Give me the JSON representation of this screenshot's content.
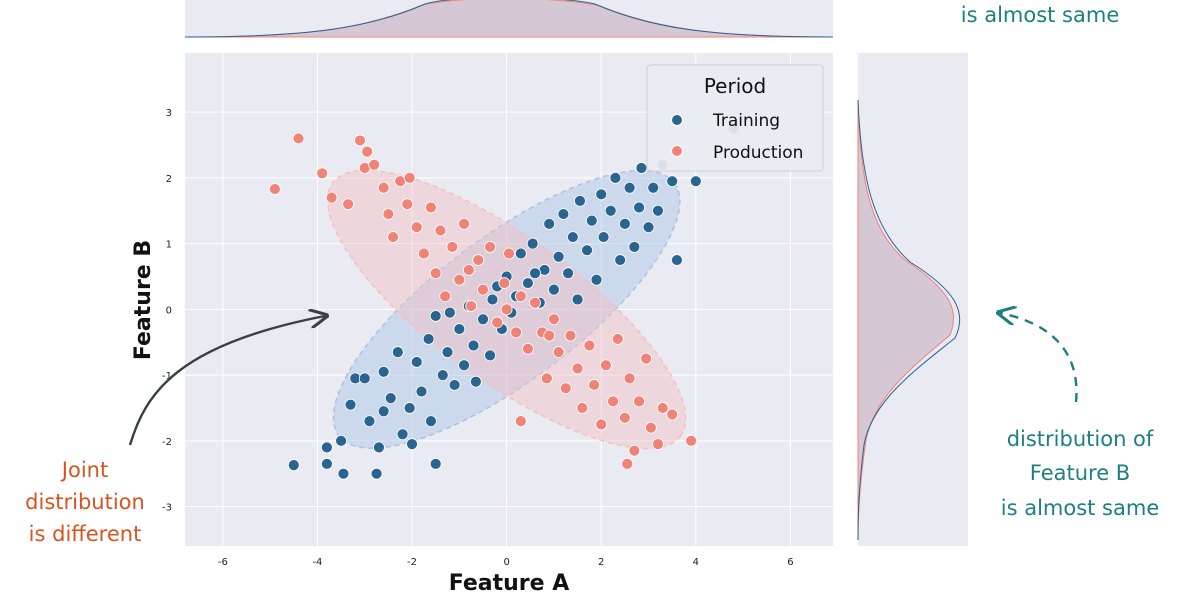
{
  "chart_data": {
    "type": "scatter",
    "xlabel": "Feature A",
    "ylabel": "Feature B",
    "xlim": [
      -6.8,
      6.9
    ],
    "ylim": [
      -3.6,
      3.9
    ],
    "xticks": [
      -6,
      -4,
      -2,
      0,
      2,
      4,
      6
    ],
    "yticks": [
      -3,
      -2,
      -1,
      0,
      1,
      2,
      3
    ],
    "grid": true,
    "legend": {
      "title": "Period",
      "placement": "top-right"
    },
    "series": [
      {
        "name": "Training",
        "color": "#2a6592",
        "correlation": "positive",
        "ellipse_center": [
          0,
          0
        ],
        "values": [
          [
            -4.5,
            -2.37
          ],
          [
            -3.8,
            -2.1
          ],
          [
            -3.8,
            -2.35
          ],
          [
            -3.5,
            -2.0
          ],
          [
            -3.45,
            -2.5
          ],
          [
            -3.3,
            -1.45
          ],
          [
            -3.2,
            -1.05
          ],
          [
            -3.0,
            -1.05
          ],
          [
            -2.75,
            -2.5
          ],
          [
            -2.7,
            -2.1
          ],
          [
            -2.9,
            -1.7
          ],
          [
            -2.6,
            -1.55
          ],
          [
            -2.6,
            -0.95
          ],
          [
            -2.45,
            -1.35
          ],
          [
            -2.3,
            -0.65
          ],
          [
            -2.2,
            -1.9
          ],
          [
            -2.05,
            -1.5
          ],
          [
            -2.0,
            -2.05
          ],
          [
            -1.9,
            -0.8
          ],
          [
            -1.8,
            -1.25
          ],
          [
            -1.65,
            -0.45
          ],
          [
            -1.6,
            -1.7
          ],
          [
            -1.5,
            -2.35
          ],
          [
            -1.5,
            -0.1
          ],
          [
            -1.35,
            -1.0
          ],
          [
            -1.25,
            -0.65
          ],
          [
            -1.1,
            -1.15
          ],
          [
            -1.0,
            -0.3
          ],
          [
            -0.9,
            -0.85
          ],
          [
            -0.8,
            0.05
          ],
          [
            -0.7,
            -0.55
          ],
          [
            -0.65,
            -1.1
          ],
          [
            -0.5,
            -0.15
          ],
          [
            -0.35,
            -0.7
          ],
          [
            -0.2,
            0.35
          ],
          [
            -0.1,
            -0.3
          ],
          [
            0.0,
            0.5
          ],
          [
            0.1,
            -0.05
          ],
          [
            0.2,
            0.2
          ],
          [
            0.3,
            0.85
          ],
          [
            0.45,
            0.4
          ],
          [
            0.55,
            1.0
          ],
          [
            0.7,
            0.1
          ],
          [
            0.8,
            0.6
          ],
          [
            0.9,
            1.3
          ],
          [
            1.0,
            0.3
          ],
          [
            1.1,
            0.8
          ],
          [
            1.2,
            1.45
          ],
          [
            1.3,
            0.55
          ],
          [
            1.4,
            1.1
          ],
          [
            1.5,
            0.15
          ],
          [
            1.55,
            1.65
          ],
          [
            1.7,
            0.9
          ],
          [
            1.8,
            1.35
          ],
          [
            1.9,
            0.45
          ],
          [
            2.0,
            1.75
          ],
          [
            2.05,
            1.1
          ],
          [
            2.2,
            1.5
          ],
          [
            2.3,
            2.0
          ],
          [
            2.4,
            0.75
          ],
          [
            2.5,
            1.3
          ],
          [
            2.6,
            1.85
          ],
          [
            2.7,
            0.95
          ],
          [
            2.8,
            1.55
          ],
          [
            2.85,
            2.15
          ],
          [
            3.0,
            1.25
          ],
          [
            3.1,
            1.85
          ],
          [
            3.2,
            1.5
          ],
          [
            3.3,
            2.2
          ],
          [
            3.5,
            1.95
          ],
          [
            3.6,
            0.75
          ],
          [
            4.0,
            1.95
          ],
          [
            4.8,
            2.75
          ],
          [
            -1.2,
            -0.05
          ],
          [
            -0.3,
            0.15
          ],
          [
            0.6,
            0.55
          ]
        ]
      },
      {
        "name": "Production",
        "color": "#f08377",
        "correlation": "negative",
        "ellipse_center": [
          0,
          0
        ],
        "values": [
          [
            -4.9,
            1.83
          ],
          [
            -4.4,
            2.6
          ],
          [
            -3.9,
            2.07
          ],
          [
            -3.7,
            1.7
          ],
          [
            -3.35,
            1.6
          ],
          [
            -3.1,
            2.57
          ],
          [
            -3.0,
            2.15
          ],
          [
            -2.95,
            2.4
          ],
          [
            -2.8,
            2.2
          ],
          [
            -2.6,
            1.85
          ],
          [
            -2.5,
            1.45
          ],
          [
            -2.4,
            1.1
          ],
          [
            -2.25,
            1.95
          ],
          [
            -2.1,
            1.6
          ],
          [
            -2.05,
            2.0
          ],
          [
            -1.9,
            1.25
          ],
          [
            -1.75,
            0.85
          ],
          [
            -1.6,
            1.55
          ],
          [
            -1.5,
            0.55
          ],
          [
            -1.4,
            1.2
          ],
          [
            -1.3,
            0.2
          ],
          [
            -1.15,
            0.95
          ],
          [
            -1.0,
            0.45
          ],
          [
            -0.9,
            1.3
          ],
          [
            -0.75,
            0.05
          ],
          [
            -0.6,
            0.75
          ],
          [
            -0.5,
            0.3
          ],
          [
            -0.35,
            0.95
          ],
          [
            -0.2,
            -0.2
          ],
          [
            -0.05,
            0.4
          ],
          [
            0.05,
            0.85
          ],
          [
            0.2,
            -0.35
          ],
          [
            0.3,
            0.2
          ],
          [
            0.45,
            -0.6
          ],
          [
            0.6,
            0.1
          ],
          [
            0.75,
            -0.35
          ],
          [
            0.85,
            -1.05
          ],
          [
            1.0,
            -0.15
          ],
          [
            1.1,
            -0.65
          ],
          [
            1.25,
            -1.2
          ],
          [
            1.35,
            -0.4
          ],
          [
            1.5,
            -0.9
          ],
          [
            1.6,
            -1.5
          ],
          [
            1.75,
            -0.55
          ],
          [
            1.85,
            -1.15
          ],
          [
            2.0,
            -1.75
          ],
          [
            2.1,
            -0.85
          ],
          [
            2.25,
            -1.4
          ],
          [
            2.35,
            -0.45
          ],
          [
            2.5,
            -1.65
          ],
          [
            2.6,
            -1.05
          ],
          [
            2.7,
            -2.15
          ],
          [
            2.8,
            -1.4
          ],
          [
            2.95,
            -0.75
          ],
          [
            3.05,
            -1.8
          ],
          [
            3.2,
            -2.05
          ],
          [
            3.3,
            -1.5
          ],
          [
            3.5,
            -1.6
          ],
          [
            3.9,
            -2.0
          ],
          [
            2.55,
            -2.35
          ],
          [
            0.3,
            -1.7
          ],
          [
            -0.8,
            0.6
          ],
          [
            0.0,
            0.0
          ],
          [
            0.9,
            -0.4
          ]
        ]
      }
    ],
    "marginals": [
      {
        "feature": "Feature A",
        "position": "top",
        "description_bound": true
      },
      {
        "feature": "Feature B",
        "position": "right"
      }
    ]
  },
  "annotations": {
    "top_right": "is almost same",
    "left": [
      "Joint",
      "distribution",
      "is different"
    ],
    "right": [
      "distribution of",
      "Feature B",
      "is almost same"
    ]
  },
  "colors": {
    "training": "#2a6592",
    "production": "#f08377",
    "plot_bg": "#eaeaf2",
    "orange_text": "#d9531e",
    "teal_text": "#1b7f85"
  }
}
